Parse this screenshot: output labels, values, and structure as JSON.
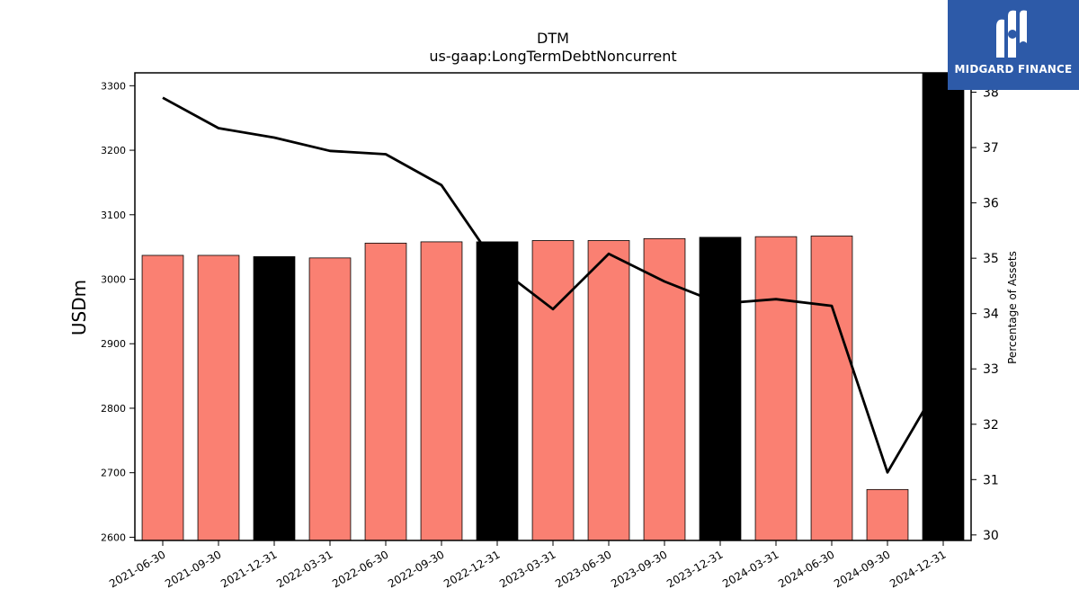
{
  "chart_data": {
    "type": "bar",
    "title": "DTM",
    "subtitle": "us-gaap:LongTermDebtNoncurrent",
    "ylabel": "USDm",
    "y2label": "Percentage of Assets",
    "categories": [
      "2021-06-30",
      "2021-09-30",
      "2021-12-31",
      "2022-03-31",
      "2022-06-30",
      "2022-09-30",
      "2022-12-31",
      "2023-03-31",
      "2023-06-30",
      "2023-09-30",
      "2023-12-31",
      "2024-03-31",
      "2024-06-30",
      "2024-09-30",
      "2024-12-31"
    ],
    "series": [
      {
        "kind": "bar",
        "axis": "left",
        "values": [
          3037,
          3037,
          3035,
          3033,
          3056,
          3058,
          3058,
          3060,
          3060,
          3063,
          3065,
          3066,
          3067,
          2674,
          3320
        ],
        "colors": [
          "#fa8072",
          "#fa8072",
          "#000000",
          "#fa8072",
          "#fa8072",
          "#fa8072",
          "#000000",
          "#fa8072",
          "#fa8072",
          "#fa8072",
          "#000000",
          "#fa8072",
          "#fa8072",
          "#fa8072",
          "#000000"
        ]
      },
      {
        "kind": "line",
        "axis": "right",
        "color": "#000000",
        "values": [
          37.9,
          37.35,
          37.18,
          36.94,
          36.88,
          36.32,
          34.85,
          34.08,
          35.08,
          34.58,
          34.18,
          34.26,
          34.14,
          31.13,
          32.85
        ]
      }
    ],
    "ylim": [
      2595,
      3320
    ],
    "yticks": [
      2600,
      2700,
      2800,
      2900,
      3000,
      3100,
      3200,
      3300
    ],
    "y2lim": [
      29.9,
      38.35
    ],
    "y2ticks": [
      30,
      31,
      32,
      33,
      34,
      35,
      36,
      37,
      38
    ],
    "grid": false
  },
  "logo": {
    "text": "MIDGARD FINANCE",
    "background": "#2d5aa8"
  }
}
